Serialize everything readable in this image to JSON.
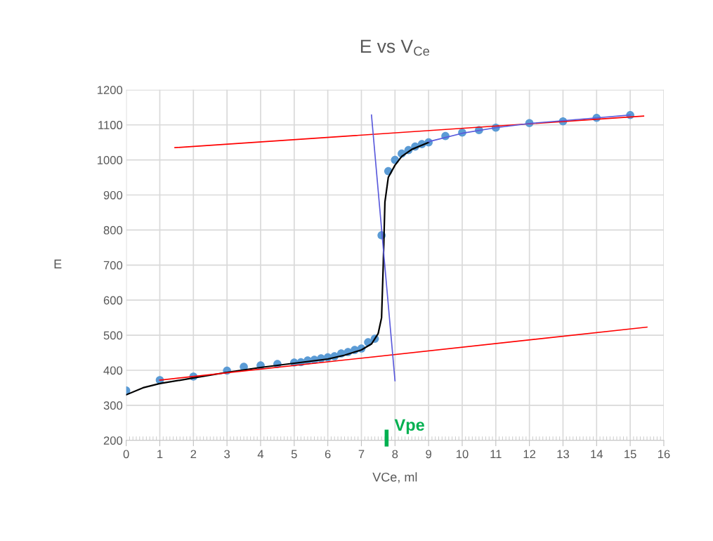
{
  "chart_data": {
    "type": "scatter",
    "title": "E vs V$_{Ce}$",
    "xlabel": "VCe, ml",
    "ylabel": "E",
    "xlim": [
      0,
      16
    ],
    "xticks": [
      0,
      1,
      2,
      3,
      4,
      5,
      6,
      7,
      8,
      9,
      10,
      11,
      12,
      13,
      14,
      15,
      16
    ],
    "ylim": [
      200,
      1200
    ],
    "yticks": [
      200,
      300,
      400,
      500,
      600,
      700,
      800,
      900,
      1000,
      1100,
      1200
    ],
    "grid": true,
    "legend": false,
    "series": [
      {
        "marker": "circle",
        "color": "#5b9bd5",
        "x": [
          0,
          1,
          2,
          3,
          3.5,
          4,
          4.5,
          5,
          5.2,
          5.4,
          5.6,
          5.8,
          6,
          6.2,
          6.4,
          6.6,
          6.8,
          7,
          7.2,
          7.4,
          7.6,
          7.8,
          8,
          8.2,
          8.4,
          8.6,
          8.8,
          9,
          9.5,
          10,
          10.5,
          11,
          12,
          13,
          14,
          15
        ],
        "values": [
          342,
          372,
          382,
          399,
          410,
          414,
          418,
          422,
          423,
          428,
          430,
          434,
          437,
          440,
          448,
          452,
          458,
          462,
          480,
          490,
          785,
          968,
          1000,
          1018,
          1028,
          1038,
          1045,
          1050,
          1068,
          1078,
          1085,
          1092,
          1105,
          1110,
          1120,
          1128
        ]
      },
      {
        "type": "line",
        "color": "#000000",
        "x": [
          0,
          0.5,
          1,
          2,
          3,
          4,
          5,
          6,
          6.5,
          7,
          7.3,
          7.5,
          7.6,
          7.65,
          7.7,
          7.8,
          8,
          8.2,
          8.5,
          9
        ],
        "values": [
          330,
          350,
          362,
          378,
          394,
          408,
          420,
          432,
          443,
          458,
          475,
          505,
          550,
          700,
          880,
          950,
          985,
          1010,
          1030,
          1050
        ]
      },
      {
        "type": "line",
        "color": "#ff0000",
        "x": [
          1.45,
          15.4
        ],
        "values": [
          1035,
          1125
        ]
      },
      {
        "type": "line",
        "color": "#ff0000",
        "x": [
          1,
          15.5
        ],
        "values": [
          372,
          523
        ]
      },
      {
        "type": "line",
        "color": "#5a5adc",
        "x": [
          7.3,
          8
        ],
        "values": [
          1128,
          370
        ]
      },
      {
        "type": "line",
        "color": "#5a5adc",
        "x": [
          9,
          10,
          11,
          12,
          13,
          14,
          15
        ],
        "values": [
          1052,
          1076,
          1092,
          1104,
          1112,
          1120,
          1128
        ]
      }
    ],
    "ref_lines": [
      {
        "axis": "x",
        "value": 7.75,
        "label": "Vpe",
        "color": "#00b050"
      }
    ]
  }
}
